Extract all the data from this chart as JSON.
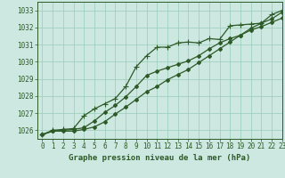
{
  "background_color": "#cce8e0",
  "plot_bg_color": "#cce8e0",
  "grid_color": "#99ccb8",
  "line_color": "#2d5a27",
  "xlabel": "Graphe pression niveau de la mer (hPa)",
  "ylim": [
    1025.5,
    1033.5
  ],
  "xlim": [
    -0.5,
    23
  ],
  "yticks": [
    1026,
    1027,
    1028,
    1029,
    1030,
    1031,
    1032,
    1033
  ],
  "xticks": [
    0,
    1,
    2,
    3,
    4,
    5,
    6,
    7,
    8,
    9,
    10,
    11,
    12,
    13,
    14,
    15,
    16,
    17,
    18,
    19,
    20,
    21,
    22,
    23
  ],
  "series1": {
    "x": [
      0,
      1,
      2,
      3,
      4,
      5,
      6,
      7,
      8,
      9,
      10,
      11,
      12,
      13,
      14,
      15,
      16,
      17,
      18,
      19,
      20,
      21,
      22,
      23
    ],
    "y": [
      1025.75,
      1026.0,
      1026.05,
      1026.1,
      1026.85,
      1027.25,
      1027.55,
      1027.85,
      1028.55,
      1029.7,
      1030.35,
      1030.85,
      1030.85,
      1031.1,
      1031.15,
      1031.1,
      1031.35,
      1031.3,
      1032.1,
      1032.15,
      1032.2,
      1032.25,
      1032.75,
      1033.0
    ]
  },
  "series2": {
    "x": [
      0,
      1,
      2,
      3,
      4,
      5,
      6,
      7,
      8,
      9,
      10,
      11,
      12,
      13,
      14,
      15,
      16,
      17,
      18,
      19,
      20,
      21,
      22,
      23
    ],
    "y": [
      1025.75,
      1025.95,
      1026.0,
      1026.05,
      1026.15,
      1026.55,
      1027.05,
      1027.45,
      1027.95,
      1028.55,
      1029.2,
      1029.45,
      1029.65,
      1029.85,
      1030.05,
      1030.35,
      1030.75,
      1031.1,
      1031.35,
      1031.55,
      1031.85,
      1032.05,
      1032.3,
      1032.55
    ]
  },
  "series3": {
    "x": [
      0,
      1,
      2,
      3,
      4,
      5,
      6,
      7,
      8,
      9,
      10,
      11,
      12,
      13,
      14,
      15,
      16,
      17,
      18,
      19,
      20,
      21,
      22,
      23
    ],
    "y": [
      1025.75,
      1025.95,
      1025.95,
      1025.95,
      1026.05,
      1026.2,
      1026.5,
      1026.95,
      1027.35,
      1027.8,
      1028.25,
      1028.55,
      1028.95,
      1029.25,
      1029.55,
      1029.95,
      1030.35,
      1030.75,
      1031.15,
      1031.55,
      1031.95,
      1032.25,
      1032.5,
      1032.9
    ]
  },
  "tick_fontsize": 5.5,
  "label_fontsize": 6.5,
  "markersize": 2.2,
  "linewidth": 0.9
}
